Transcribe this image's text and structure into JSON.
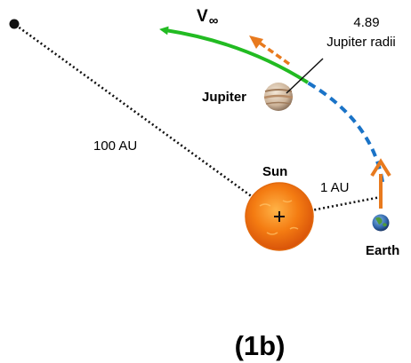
{
  "labels": {
    "v_inf": "V",
    "v_inf_sub": "∞",
    "jupiter_dist_value": "4.89",
    "jupiter_dist_unit": "Jupiter radii",
    "jupiter": "Jupiter",
    "distance_far": "100 AU",
    "sun": "Sun",
    "distance_earth": "1 AU",
    "earth": "Earth",
    "figure_label": "(1b)"
  },
  "colors": {
    "green_trajectory": "#22bb22",
    "blue_dashed_trajectory": "#1a73c7",
    "orange_arrow": "#e87a1e",
    "dotted_line": "#111111",
    "sun": "#f07a10"
  },
  "icons": {
    "far_point": "black-dot",
    "sun_center": "plus-sign",
    "earth": "earth-globe",
    "jupiter": "jupiter-planet"
  }
}
